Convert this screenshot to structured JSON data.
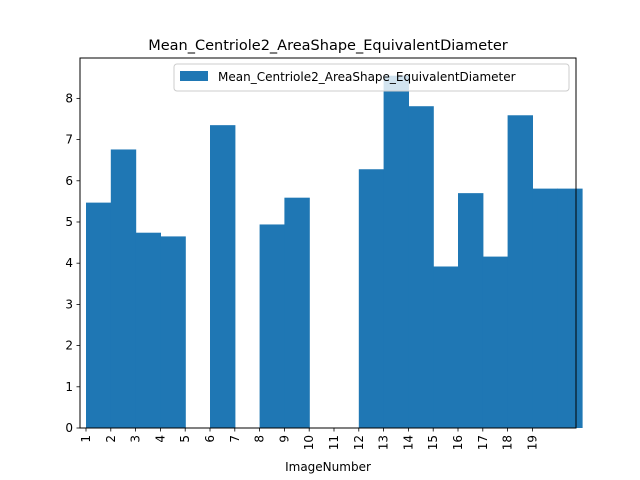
{
  "chart_data": {
    "type": "bar",
    "title": "Mean_Centriole2_AreaShape_EquivalentDiameter",
    "xlabel": "ImageNumber",
    "ylabel": "",
    "categories": [
      "1",
      "2",
      "3",
      "4",
      "5",
      "6",
      "7",
      "8",
      "9",
      "10",
      "11",
      "12",
      "13",
      "14",
      "15",
      "16",
      "17",
      "18",
      "19"
    ],
    "x_range": [
      1,
      21
    ],
    "series": [
      {
        "name": "Mean_Centriole2_AreaShape_EquivalentDiameter",
        "color": "#1f77b4",
        "bars": [
          {
            "x": 1,
            "value": 5.47
          },
          {
            "x": 2,
            "value": 6.76
          },
          {
            "x": 3,
            "value": 4.74
          },
          {
            "x": 4,
            "value": 4.65
          },
          {
            "x": 6,
            "value": 7.35
          },
          {
            "x": 8,
            "value": 4.94
          },
          {
            "x": 9,
            "value": 5.59
          },
          {
            "x": 12,
            "value": 6.28
          },
          {
            "x": 13,
            "value": 8.55
          },
          {
            "x": 14,
            "value": 7.81
          },
          {
            "x": 15,
            "value": 3.92
          },
          {
            "x": 16,
            "value": 5.7
          },
          {
            "x": 17,
            "value": 4.16
          },
          {
            "x": 18,
            "value": 7.59
          },
          {
            "x": 19,
            "value": 5.81
          },
          {
            "x": 20,
            "value": 5.81
          }
        ]
      }
    ],
    "ylim": [
      0,
      8.98
    ],
    "yticks": [
      0,
      1,
      2,
      3,
      4,
      5,
      6,
      7,
      8
    ],
    "grid": false,
    "legend_position": "top-right"
  }
}
